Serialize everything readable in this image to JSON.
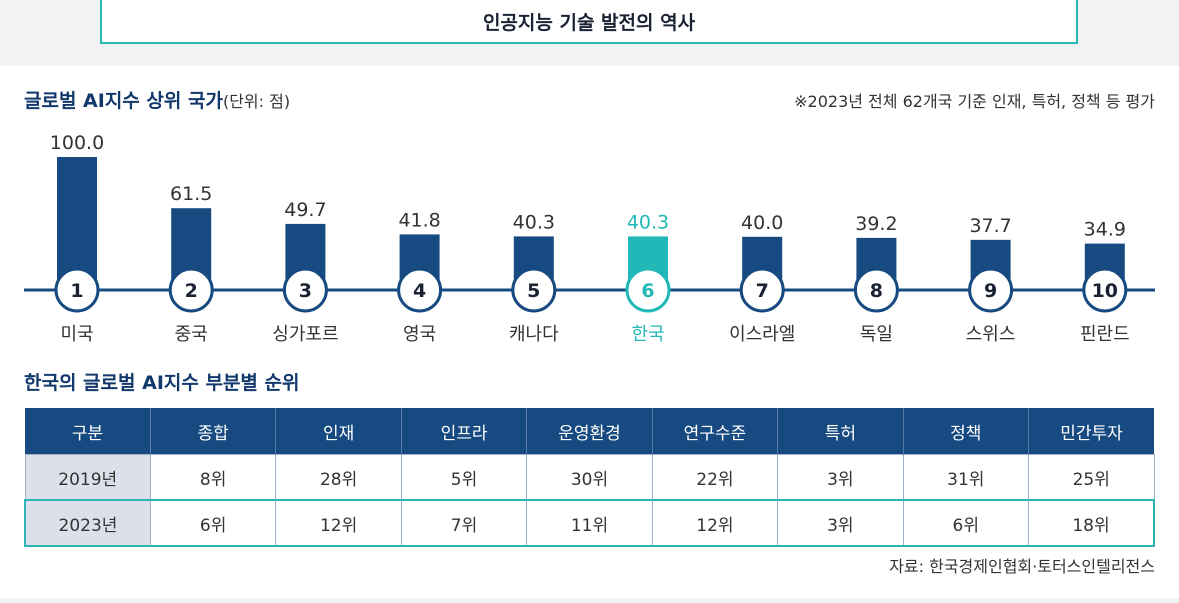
{
  "header": {
    "title": "인공지능 기술 발전의 역사"
  },
  "chart_heading": {
    "title": "글로벌 AI지수 상위 국가",
    "unit": "(단위: 점)"
  },
  "note": "※2023년 전체 62개국 기준 인재, 특허, 정책 등 평가",
  "chart_data": {
    "type": "bar",
    "categories": [
      "미국",
      "중국",
      "싱가포르",
      "영국",
      "캐나다",
      "한국",
      "이스라엘",
      "독일",
      "스위스",
      "핀란드"
    ],
    "values": [
      100.0,
      61.5,
      49.7,
      41.8,
      40.3,
      40.3,
      40.0,
      39.2,
      37.7,
      34.9
    ],
    "value_labels": [
      "100.0",
      "61.5",
      "49.7",
      "41.8",
      "40.3",
      "40.3",
      "40.0",
      "39.2",
      "37.7",
      "34.9"
    ],
    "ranks": [
      "1",
      "2",
      "3",
      "4",
      "5",
      "6",
      "7",
      "8",
      "9",
      "10"
    ],
    "highlight": "한국",
    "colors": {
      "bar": "#174a80",
      "highlight": "#22b8b8",
      "line": "#174a80"
    }
  },
  "table_heading": "한국의 글로벌 AI지수 부분별 순위",
  "table": {
    "headers": [
      "구분",
      "종합",
      "인재",
      "인프라",
      "운영환경",
      "연구수준",
      "특허",
      "정책",
      "민간투자"
    ],
    "rows": [
      {
        "year": "2019년",
        "cells": [
          "8위",
          "28위",
          "5위",
          "30위",
          "22위",
          "3위",
          "31위",
          "25위"
        ]
      },
      {
        "year": "2023년",
        "cells": [
          "6위",
          "12위",
          "7위",
          "11위",
          "12위",
          "3위",
          "6위",
          "18위"
        ]
      }
    ]
  },
  "source": "자료:  한국경제인협회·토터스인텔리전스"
}
